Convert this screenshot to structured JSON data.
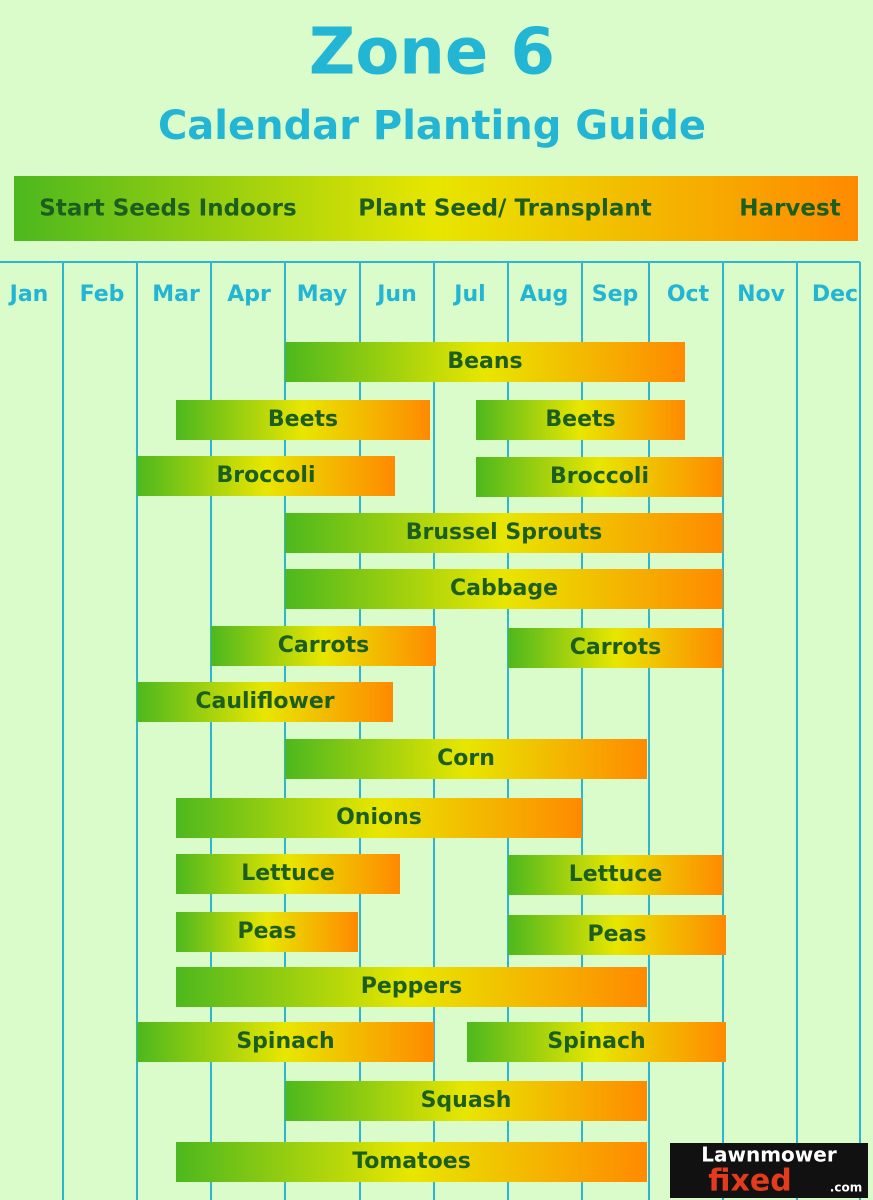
{
  "header": {
    "title": "Zone 6",
    "subtitle": "Calendar Planting Guide"
  },
  "legend": [
    "Start Seeds Indoors",
    "Plant Seed/ Transplant",
    "Harvest"
  ],
  "months": [
    "Jan",
    "Feb",
    "Mar",
    "Apr",
    "May",
    "Jun",
    "Jul",
    "Aug",
    "Sep",
    "Oct",
    "Nov",
    "Dec"
  ],
  "bars": [
    {
      "label": "Beans"
    },
    {
      "label": "Beets"
    },
    {
      "label": "Beets"
    },
    {
      "label": "Broccoli"
    },
    {
      "label": "Broccoli"
    },
    {
      "label": "Brussel Sprouts"
    },
    {
      "label": "Cabbage"
    },
    {
      "label": "Carrots"
    },
    {
      "label": "Carrots"
    },
    {
      "label": "Cauliflower"
    },
    {
      "label": "Corn"
    },
    {
      "label": "Onions"
    },
    {
      "label": "Lettuce"
    },
    {
      "label": "Lettuce"
    },
    {
      "label": "Peas"
    },
    {
      "label": "Peas"
    },
    {
      "label": "Peppers"
    },
    {
      "label": "Spinach"
    },
    {
      "label": "Spinach"
    },
    {
      "label": "Squash"
    },
    {
      "label": "Tomatoes"
    }
  ],
  "logo": {
    "line1": "Lawnmower",
    "line2": "fixed",
    "suffix": ".com"
  }
}
